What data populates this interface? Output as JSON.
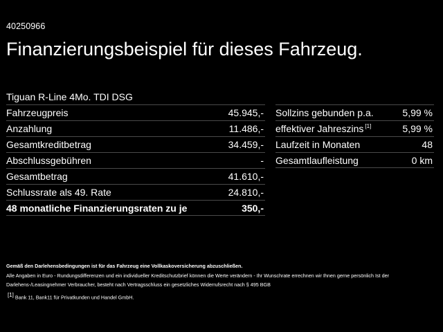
{
  "offer_id": "40250966",
  "headline": "Finanzierungsbeispiel für dieses Fahrzeug.",
  "model": "Tiguan R-Line 4Mo. TDI DSG",
  "left_table": [
    {
      "label": "Fahrzeugpreis",
      "value": "45.945,-",
      "bold": false
    },
    {
      "label": "Anzahlung",
      "value": "11.486,-",
      "bold": false
    },
    {
      "label": "Gesamtkreditbetrag",
      "value": "34.459,-",
      "bold": false
    },
    {
      "label": "Abschlussgebühren",
      "value": "-",
      "bold": false
    },
    {
      "label": "Gesamtbetrag",
      "value": "41.610,-",
      "bold": false
    },
    {
      "label": "Schlussrate als 49. Rate",
      "value": "24.810,-",
      "bold": false
    },
    {
      "label": "48 monatliche Finanzierungsraten zu je",
      "value": "350,-",
      "bold": true
    }
  ],
  "right_table": [
    {
      "label": "Sollzins gebunden p.a.",
      "sup": "",
      "value": "5,99 %"
    },
    {
      "label": "effektiver Jahreszins",
      "sup": "[1]",
      "value": "5,99 %"
    },
    {
      "label": "Laufzeit in Monaten",
      "sup": "",
      "value": "48"
    },
    {
      "label": "Gesamtlaufleistung",
      "sup": "",
      "value": "0 km"
    }
  ],
  "footnotes": {
    "insurance_note": "Gemäß den Darlehensbedingungen ist für das Fahrzeug eine Vollkaskoversicherung abzuschließen.",
    "disclaimer": "Alle Angaben in Euro - Rundungsdifferenzen und ein individueller Kreditschutzbrief können die Werte verändern - Ihr Wunschrate errechnen wir Ihnen gerne persönlich Ist der Darlehens-/Leasingnehmer Verbraucher, besteht nach Vertragsschluss ein gesetzliches Widerrufsrecht nach § 495 BGB",
    "marker": "[1]",
    "bank": "Bank 11, Bank11 für Privatkunden und Handel GmbH."
  }
}
